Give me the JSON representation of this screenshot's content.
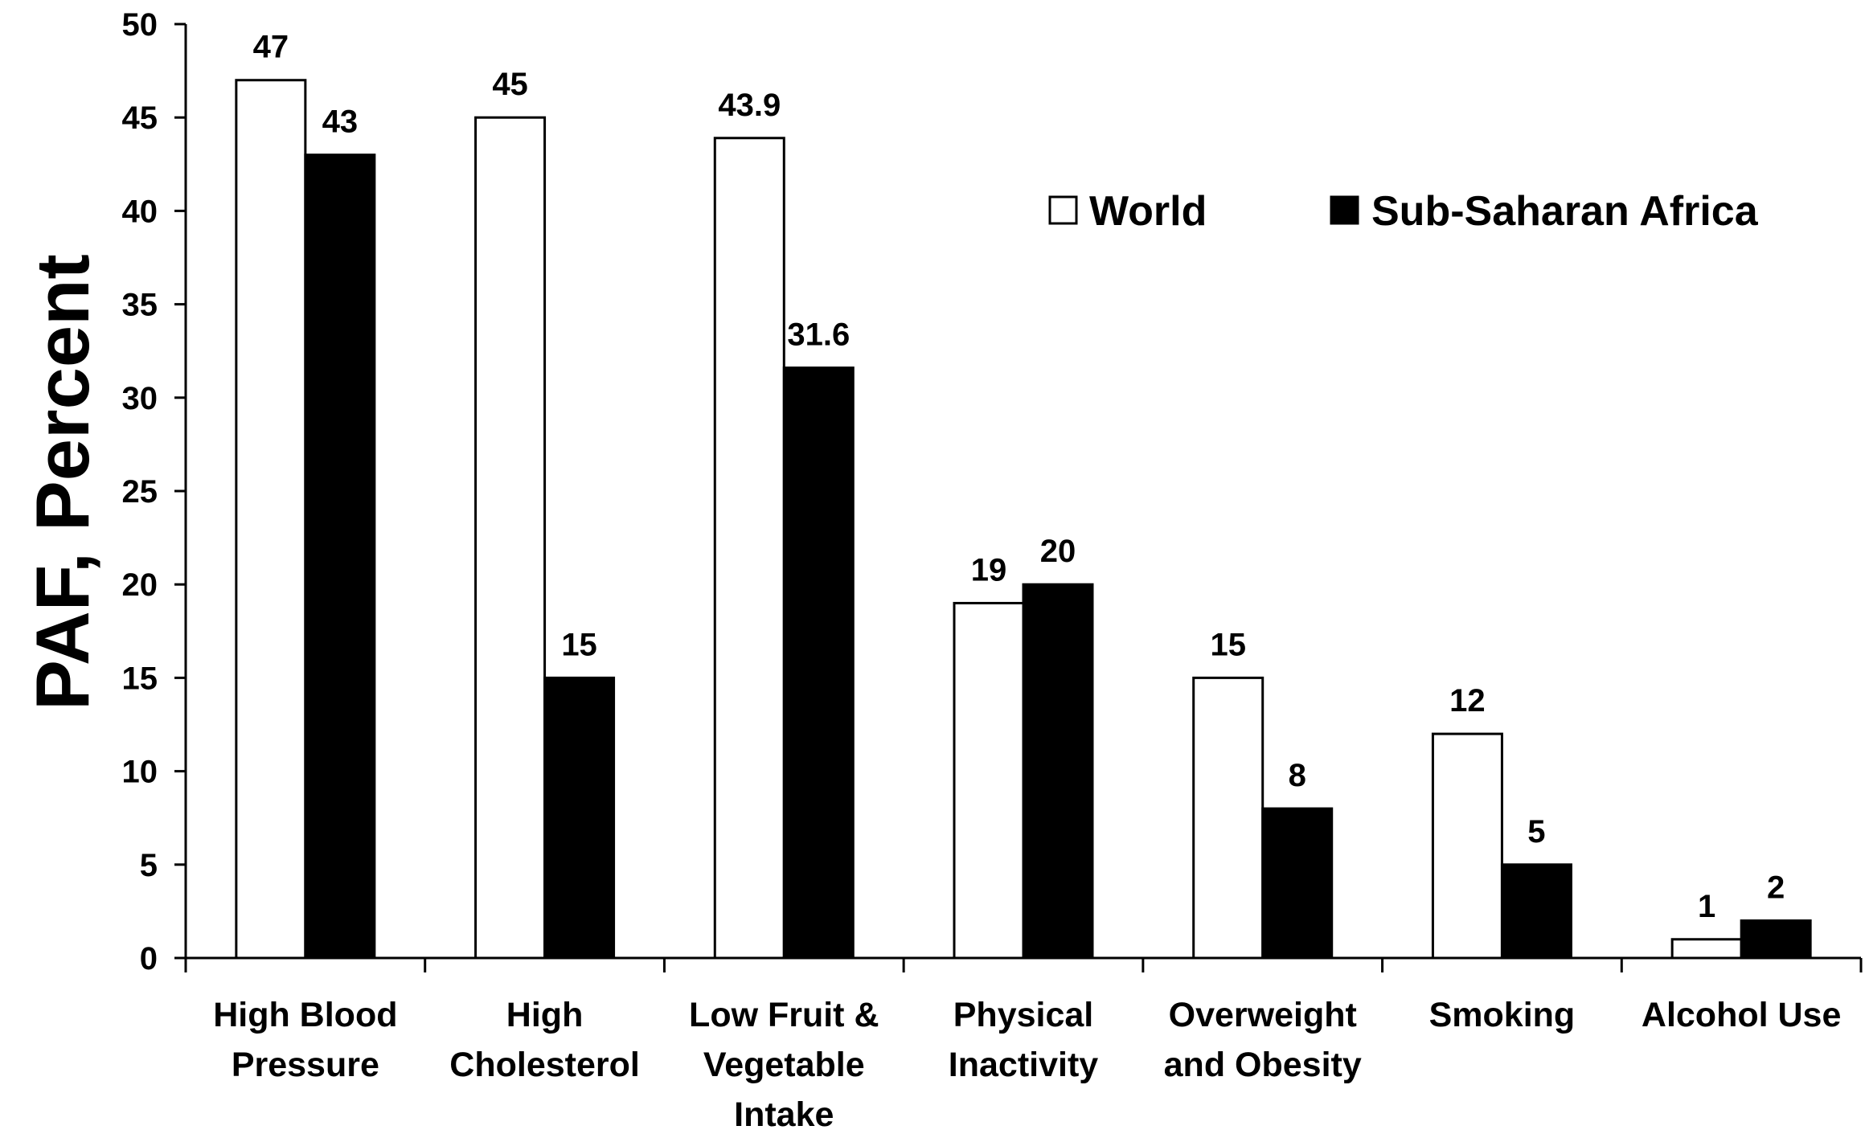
{
  "chart_data": {
    "type": "bar",
    "title": "",
    "xlabel": "",
    "ylabel": "PAF, Percent",
    "ylim": [
      0,
      50
    ],
    "yticks": [
      0,
      5,
      10,
      15,
      20,
      25,
      30,
      35,
      40,
      45,
      50
    ],
    "grid": false,
    "legend_position": "top-right",
    "categories": [
      [
        "High Blood",
        "Pressure"
      ],
      [
        "High",
        "Cholesterol"
      ],
      [
        "Low Fruit &",
        "Vegetable",
        "Intake"
      ],
      [
        "Physical",
        "Inactivity"
      ],
      [
        "Overweight",
        "and Obesity"
      ],
      [
        "Smoking"
      ],
      [
        "Alcohol Use"
      ]
    ],
    "series": [
      {
        "name": "World",
        "color": "#ffffff",
        "values": [
          47,
          45,
          43.9,
          19,
          15,
          12,
          1
        ],
        "labels": [
          "47",
          "45",
          "43.9",
          "19",
          "15",
          "12",
          "1"
        ]
      },
      {
        "name": "Sub-Saharan Africa",
        "color": "#000000",
        "values": [
          43,
          15,
          31.6,
          20,
          8,
          5,
          2
        ],
        "labels": [
          "43",
          "15",
          "31.6",
          "20",
          "8",
          "5",
          "2"
        ]
      }
    ]
  }
}
